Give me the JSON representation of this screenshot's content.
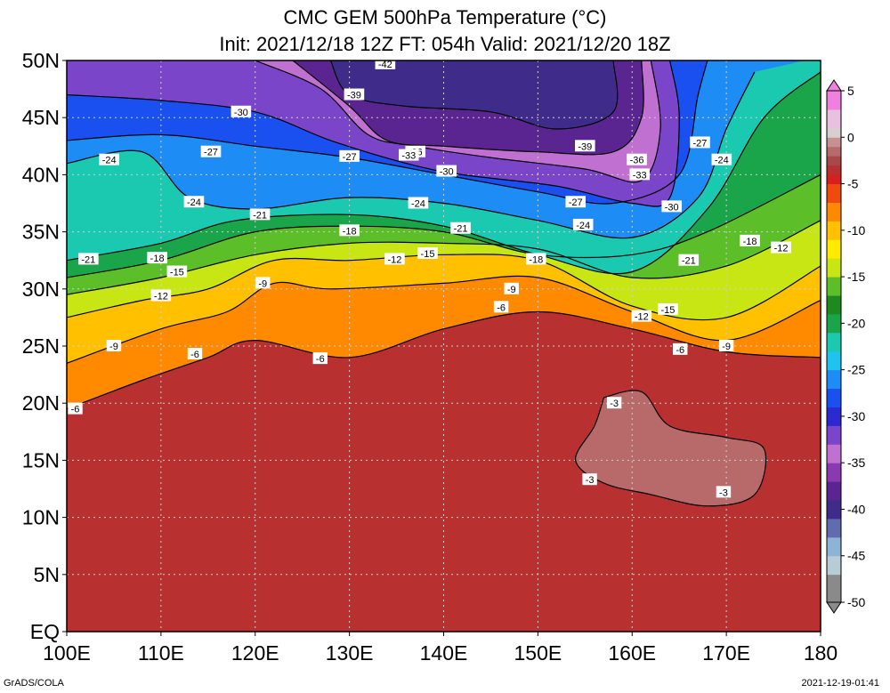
{
  "title": {
    "line1": "CMC GEM 500hPa Temperature (°C)",
    "line2": "Init: 2021/12/18 12Z  FT: 054h  Valid: 2021/12/20 18Z"
  },
  "map": {
    "lon_range": [
      100,
      180
    ],
    "lat_range": [
      0,
      50
    ],
    "lon_ticks": [
      {
        "v": 100,
        "label": "100E"
      },
      {
        "v": 110,
        "label": "110E"
      },
      {
        "v": 120,
        "label": "120E"
      },
      {
        "v": 130,
        "label": "130E"
      },
      {
        "v": 140,
        "label": "140E"
      },
      {
        "v": 150,
        "label": "150E"
      },
      {
        "v": 160,
        "label": "160E"
      },
      {
        "v": 170,
        "label": "170E"
      },
      {
        "v": 180,
        "label": "180"
      }
    ],
    "lat_ticks": [
      {
        "v": 0,
        "label": "EQ"
      },
      {
        "v": 5,
        "label": "5N"
      },
      {
        "v": 10,
        "label": "10N"
      },
      {
        "v": 15,
        "label": "15N"
      },
      {
        "v": 20,
        "label": "20N"
      },
      {
        "v": 25,
        "label": "25N"
      },
      {
        "v": 30,
        "label": "30N"
      },
      {
        "v": 35,
        "label": "35N"
      },
      {
        "v": 40,
        "label": "40N"
      },
      {
        "v": 45,
        "label": "45N"
      },
      {
        "v": 50,
        "label": "50N"
      }
    ],
    "isotherms": [
      {
        "value": -3,
        "points": [
          [
            157,
            20.5
          ],
          [
            161,
            21
          ],
          [
            164,
            18
          ],
          [
            170,
            17
          ],
          [
            174,
            16
          ],
          [
            173,
            12
          ],
          [
            168,
            11
          ],
          [
            162,
            12
          ],
          [
            157,
            13
          ],
          [
            154,
            15
          ],
          [
            156,
            18
          ],
          [
            157,
            20.5
          ]
        ]
      },
      {
        "value": -6,
        "points": [
          [
            100,
            19.5
          ],
          [
            108,
            22
          ],
          [
            115,
            24
          ],
          [
            120,
            25.5
          ],
          [
            130,
            24
          ],
          [
            140,
            26.5
          ],
          [
            150,
            28
          ],
          [
            160,
            26.5
          ],
          [
            170,
            24.5
          ],
          [
            180,
            24
          ]
        ]
      },
      {
        "value": -9,
        "points": [
          [
            100,
            23.5
          ],
          [
            110,
            26.5
          ],
          [
            117,
            28
          ],
          [
            122,
            30.5
          ],
          [
            128,
            30
          ],
          [
            140,
            30.5
          ],
          [
            150,
            31
          ],
          [
            160,
            28
          ],
          [
            170,
            25.5
          ],
          [
            180,
            29
          ]
        ]
      },
      {
        "value": -12,
        "points": [
          [
            100,
            27.5
          ],
          [
            108,
            29
          ],
          [
            115,
            30
          ],
          [
            122,
            32.5
          ],
          [
            130,
            32.5
          ],
          [
            140,
            33
          ],
          [
            150,
            32.5
          ],
          [
            160,
            28.5
          ],
          [
            170,
            27.5
          ],
          [
            180,
            32
          ]
        ]
      },
      {
        "value": -15,
        "points": [
          [
            100,
            29.5
          ],
          [
            110,
            31
          ],
          [
            120,
            33
          ],
          [
            130,
            34
          ],
          [
            140,
            34
          ],
          [
            150,
            33.5
          ],
          [
            160,
            31
          ],
          [
            170,
            32
          ],
          [
            180,
            36
          ]
        ]
      },
      {
        "value": -18,
        "points": [
          [
            100,
            31
          ],
          [
            110,
            32.5
          ],
          [
            120,
            35
          ],
          [
            130,
            35.5
          ],
          [
            140,
            35
          ],
          [
            150,
            33
          ],
          [
            160,
            33
          ],
          [
            168,
            35
          ],
          [
            180,
            40
          ]
        ]
      },
      {
        "value": -21,
        "points": [
          [
            100,
            32.5
          ],
          [
            110,
            34
          ],
          [
            118,
            36
          ],
          [
            130,
            36.5
          ],
          [
            140,
            35.5
          ],
          [
            150,
            33
          ],
          [
            160,
            31.5
          ],
          [
            168,
            37
          ],
          [
            174,
            45
          ],
          [
            180,
            49
          ]
        ]
      },
      {
        "value": -24,
        "points": [
          [
            100,
            41
          ],
          [
            108,
            42
          ],
          [
            113,
            38
          ],
          [
            120,
            37
          ],
          [
            130,
            38
          ],
          [
            140,
            37.5
          ],
          [
            150,
            36
          ],
          [
            160,
            34.5
          ],
          [
            167,
            38
          ],
          [
            170,
            44
          ],
          [
            173,
            49
          ]
        ]
      },
      {
        "value": -27,
        "points": [
          [
            100,
            43
          ],
          [
            110,
            43.5
          ],
          [
            120,
            42.5
          ],
          [
            130,
            41.5
          ],
          [
            140,
            40
          ],
          [
            150,
            38.5
          ],
          [
            158,
            37.5
          ],
          [
            165,
            40
          ],
          [
            167,
            47
          ],
          [
            168,
            50
          ]
        ]
      },
      {
        "value": -30,
        "points": [
          [
            100,
            47
          ],
          [
            110,
            46.5
          ],
          [
            120,
            45.5
          ],
          [
            128,
            43
          ],
          [
            136,
            41
          ],
          [
            142,
            40
          ],
          [
            152,
            39
          ],
          [
            160,
            37.5
          ],
          [
            164,
            38
          ],
          [
            165,
            45
          ],
          [
            164,
            50
          ]
        ]
      },
      {
        "value": -33,
        "points": [
          [
            120,
            50
          ],
          [
            127,
            47.5
          ],
          [
            132,
            43.5
          ],
          [
            137,
            42.5
          ],
          [
            145,
            41.5
          ],
          [
            155,
            40.5
          ],
          [
            161,
            39.5
          ],
          [
            163,
            44
          ],
          [
            162,
            50
          ]
        ]
      },
      {
        "value": -36,
        "points": [
          [
            124,
            50
          ],
          [
            130,
            46
          ],
          [
            134,
            43
          ],
          [
            140,
            42.5
          ],
          [
            150,
            42
          ],
          [
            158,
            42
          ],
          [
            161,
            45
          ],
          [
            161,
            50
          ]
        ]
      },
      {
        "value": -39,
        "points": [
          [
            128,
            50
          ],
          [
            130,
            47
          ],
          [
            136,
            46
          ],
          [
            145,
            45.5
          ],
          [
            152,
            44
          ],
          [
            158,
            45.5
          ],
          [
            158,
            50
          ]
        ]
      }
    ],
    "contour_labels": [
      {
        "text": "-42",
        "lon": 133.8,
        "lat": 49.7
      },
      {
        "text": "-39",
        "lon": 130.5,
        "lat": 47.0
      },
      {
        "text": "-39",
        "lon": 155.0,
        "lat": 42.5
      },
      {
        "text": "-36",
        "lon": 137.0,
        "lat": 42.0
      },
      {
        "text": "-36",
        "lon": 160.5,
        "lat": 41.3
      },
      {
        "text": "-33",
        "lon": 136.3,
        "lat": 41.7
      },
      {
        "text": "-33",
        "lon": 160.8,
        "lat": 40.0
      },
      {
        "text": "-30",
        "lon": 118.5,
        "lat": 45.5
      },
      {
        "text": "-30",
        "lon": 140.3,
        "lat": 40.3
      },
      {
        "text": "-30",
        "lon": 164.2,
        "lat": 37.2
      },
      {
        "text": "-27",
        "lon": 115.3,
        "lat": 42.0
      },
      {
        "text": "-27",
        "lon": 130.0,
        "lat": 41.6
      },
      {
        "text": "-27",
        "lon": 154.0,
        "lat": 37.6
      },
      {
        "text": "-27",
        "lon": 167.2,
        "lat": 42.8
      },
      {
        "text": "-24",
        "lon": 104.5,
        "lat": 41.3
      },
      {
        "text": "-24",
        "lon": 113.5,
        "lat": 37.6
      },
      {
        "text": "-24",
        "lon": 137.3,
        "lat": 37.5
      },
      {
        "text": "-24",
        "lon": 154.8,
        "lat": 35.6
      },
      {
        "text": "-24",
        "lon": 169.5,
        "lat": 41.3
      },
      {
        "text": "-21",
        "lon": 102.3,
        "lat": 32.6
      },
      {
        "text": "-21",
        "lon": 120.5,
        "lat": 36.5
      },
      {
        "text": "-21",
        "lon": 141.8,
        "lat": 35.3
      },
      {
        "text": "-21",
        "lon": 166.0,
        "lat": 32.5
      },
      {
        "text": "-18",
        "lon": 109.6,
        "lat": 32.7
      },
      {
        "text": "-18",
        "lon": 130.0,
        "lat": 35.1
      },
      {
        "text": "-18",
        "lon": 149.8,
        "lat": 32.6
      },
      {
        "text": "-18",
        "lon": 172.5,
        "lat": 34.2
      },
      {
        "text": "-15",
        "lon": 111.7,
        "lat": 31.5
      },
      {
        "text": "-15",
        "lon": 138.3,
        "lat": 33.1
      },
      {
        "text": "-15",
        "lon": 163.8,
        "lat": 28.2
      },
      {
        "text": "-12",
        "lon": 110.0,
        "lat": 29.4
      },
      {
        "text": "-12",
        "lon": 134.8,
        "lat": 32.6
      },
      {
        "text": "-12",
        "lon": 161.0,
        "lat": 27.6
      },
      {
        "text": "-12",
        "lon": 175.8,
        "lat": 33.6
      },
      {
        "text": "-9",
        "lon": 105.0,
        "lat": 25.0
      },
      {
        "text": "-9",
        "lon": 120.8,
        "lat": 30.5
      },
      {
        "text": "-9",
        "lon": 147.2,
        "lat": 30.0
      },
      {
        "text": "-9",
        "lon": 170.0,
        "lat": 25.0
      },
      {
        "text": "-6",
        "lon": 100.9,
        "lat": 19.5
      },
      {
        "text": "-6",
        "lon": 113.6,
        "lat": 24.3
      },
      {
        "text": "-6",
        "lon": 126.9,
        "lat": 23.9
      },
      {
        "text": "-6",
        "lon": 146.1,
        "lat": 28.4
      },
      {
        "text": "-6",
        "lon": 165.1,
        "lat": 24.7
      },
      {
        "text": "-3",
        "lon": 158.1,
        "lat": 20.0
      },
      {
        "text": "-3",
        "lon": 155.5,
        "lat": 13.3
      },
      {
        "text": "-3",
        "lon": 169.7,
        "lat": 12.2
      }
    ]
  },
  "colorbar": {
    "min": -50,
    "max": 5,
    "step": 1,
    "labels": [
      "5",
      "0",
      "-5",
      "-10",
      "-15",
      "-20",
      "-25",
      "-30",
      "-35",
      "-40",
      "-45",
      "-50"
    ],
    "label_values": [
      5,
      0,
      -5,
      -10,
      -15,
      -20,
      -25,
      -30,
      -35,
      -40,
      -45,
      -50
    ],
    "color_stops": [
      {
        "v": -50,
        "c": "#8a8a8a"
      },
      {
        "v": -47,
        "c": "#b6cdd6"
      },
      {
        "v": -45,
        "c": "#8db3d6"
      },
      {
        "v": -43,
        "c": "#5f6cb0"
      },
      {
        "v": -41,
        "c": "#3f2c8a"
      },
      {
        "v": -39,
        "c": "#5a2590"
      },
      {
        "v": -37,
        "c": "#8a3ab0"
      },
      {
        "v": -35,
        "c": "#c070d0"
      },
      {
        "v": -33,
        "c": "#7a45c8"
      },
      {
        "v": -31,
        "c": "#2a2ad0"
      },
      {
        "v": -29,
        "c": "#1a50f0"
      },
      {
        "v": -27,
        "c": "#1e8cf5"
      },
      {
        "v": -25,
        "c": "#1ec3f0"
      },
      {
        "v": -23,
        "c": "#1ac9b0"
      },
      {
        "v": -21,
        "c": "#1ba54a"
      },
      {
        "v": -19,
        "c": "#1e8a1e"
      },
      {
        "v": -17,
        "c": "#5cbf2a"
      },
      {
        "v": -15,
        "c": "#c8e614"
      },
      {
        "v": -13,
        "c": "#ffea00"
      },
      {
        "v": -11,
        "c": "#ffc000"
      },
      {
        "v": -9,
        "c": "#ff8a00"
      },
      {
        "v": -7,
        "c": "#f04a10"
      },
      {
        "v": -5,
        "c": "#d81e1e"
      },
      {
        "v": -4,
        "c": "#b83030"
      },
      {
        "v": -3,
        "c": "#a84848"
      },
      {
        "v": -2,
        "c": "#b86a6a"
      },
      {
        "v": -1,
        "c": "#c89090"
      },
      {
        "v": 0,
        "c": "#d8d0d0"
      },
      {
        "v": 1,
        "c": "#e8c0e0"
      },
      {
        "v": 3,
        "c": "#f080e0"
      },
      {
        "v": 5,
        "c": "#e040c8"
      }
    ]
  },
  "footer": {
    "left": "GrADS/COLA",
    "right": "2021-12-19-01:41"
  }
}
